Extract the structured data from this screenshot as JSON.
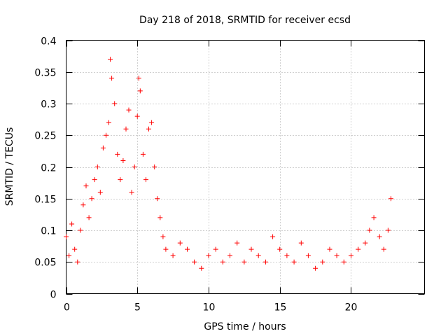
{
  "chart_data": {
    "type": "scatter",
    "title": "Day 218 of 2018, SRMTID for receiver ecsd",
    "xlabel": "GPS time / hours",
    "ylabel": "SRMTID / TECUs",
    "xlim": [
      0,
      25.16
    ],
    "ylim": [
      0,
      0.4
    ],
    "xticks": [
      0,
      5,
      10,
      15,
      20
    ],
    "xtick_labels": [
      "0",
      "5",
      "10",
      "15",
      "20"
    ],
    "yticks": [
      0,
      0.05,
      0.1,
      0.15,
      0.2,
      0.25,
      0.3,
      0.35,
      0.4
    ],
    "ytick_labels": [
      "0",
      "0.05",
      "0.1",
      "0.15",
      "0.2",
      "0.25",
      "0.3",
      "0.35",
      "0.4"
    ],
    "grid": true,
    "marker": "+",
    "color": "#ff0000",
    "series": [
      {
        "name": "SRMTID",
        "x": [
          0.0,
          0.2,
          0.4,
          0.6,
          0.8,
          1.0,
          1.2,
          1.4,
          1.6,
          1.8,
          2.0,
          2.2,
          2.4,
          2.6,
          2.8,
          3.0,
          3.1,
          3.2,
          3.4,
          3.6,
          3.8,
          4.0,
          4.2,
          4.4,
          4.6,
          4.8,
          5.0,
          5.1,
          5.2,
          5.4,
          5.6,
          5.8,
          6.0,
          6.2,
          6.4,
          6.6,
          6.8,
          7.0,
          7.5,
          8.0,
          8.5,
          9.0,
          9.5,
          10.0,
          10.5,
          11.0,
          11.5,
          12.0,
          12.5,
          13.0,
          13.5,
          14.0,
          14.5,
          15.0,
          15.5,
          16.0,
          16.5,
          17.0,
          17.5,
          18.0,
          18.5,
          19.0,
          19.5,
          20.0,
          20.5,
          21.0,
          21.3,
          21.6,
          22.0,
          22.3,
          22.6,
          22.8
        ],
        "y": [
          0.09,
          0.06,
          0.11,
          0.07,
          0.05,
          0.1,
          0.14,
          0.17,
          0.12,
          0.15,
          0.18,
          0.2,
          0.16,
          0.23,
          0.25,
          0.27,
          0.37,
          0.34,
          0.3,
          0.22,
          0.18,
          0.21,
          0.26,
          0.29,
          0.16,
          0.2,
          0.28,
          0.34,
          0.32,
          0.22,
          0.18,
          0.26,
          0.27,
          0.2,
          0.15,
          0.12,
          0.09,
          0.07,
          0.06,
          0.08,
          0.07,
          0.05,
          0.04,
          0.06,
          0.07,
          0.05,
          0.06,
          0.08,
          0.05,
          0.07,
          0.06,
          0.05,
          0.09,
          0.07,
          0.06,
          0.05,
          0.08,
          0.06,
          0.04,
          0.05,
          0.07,
          0.06,
          0.05,
          0.06,
          0.07,
          0.08,
          0.1,
          0.12,
          0.09,
          0.07,
          0.1,
          0.15
        ]
      }
    ]
  }
}
